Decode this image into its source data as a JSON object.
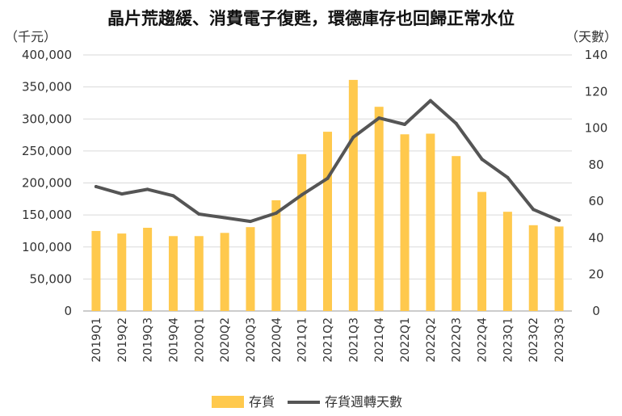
{
  "chart_data": {
    "type": "bar",
    "title": "晶片荒趨緩、消費電子復甦，環德庫存也回歸正常水位",
    "ylabel_left": "（千元）",
    "ylabel_right": "（天數）",
    "categories": [
      "2019Q1",
      "2019Q2",
      "2019Q3",
      "2019Q4",
      "2020Q1",
      "2020Q2",
      "2020Q3",
      "2020Q4",
      "2021Q1",
      "2021Q2",
      "2021Q3",
      "2021Q4",
      "2022Q1",
      "2022Q2",
      "2022Q3",
      "2022Q4",
      "2023Q1",
      "2023Q2",
      "2023Q3"
    ],
    "series": [
      {
        "name": "存貨",
        "type": "bar",
        "axis": "left",
        "color": "#FFC94D",
        "values": [
          125000,
          121000,
          130000,
          117000,
          117000,
          122000,
          131000,
          173000,
          245000,
          280000,
          361000,
          319000,
          276000,
          277000,
          242000,
          186000,
          155000,
          134000,
          132000
        ]
      },
      {
        "name": "存貨週轉天數",
        "type": "line",
        "axis": "right",
        "color": "#555555",
        "values": [
          68,
          64,
          66.5,
          63,
          53,
          51,
          49,
          53.5,
          63.5,
          72.5,
          95,
          105.5,
          102,
          115,
          102.5,
          83,
          73,
          55.5,
          49.5
        ]
      }
    ],
    "ylim_left": [
      0,
      400000
    ],
    "yticks_left": [
      "0",
      "50,000",
      "100,000",
      "150,000",
      "200,000",
      "250,000",
      "300,000",
      "350,000",
      "400,000"
    ],
    "ylim_right": [
      0,
      140
    ],
    "yticks_right": [
      "0",
      "20",
      "40",
      "60",
      "80",
      "100",
      "120",
      "140"
    ],
    "grid": true,
    "legend": "bottom"
  }
}
